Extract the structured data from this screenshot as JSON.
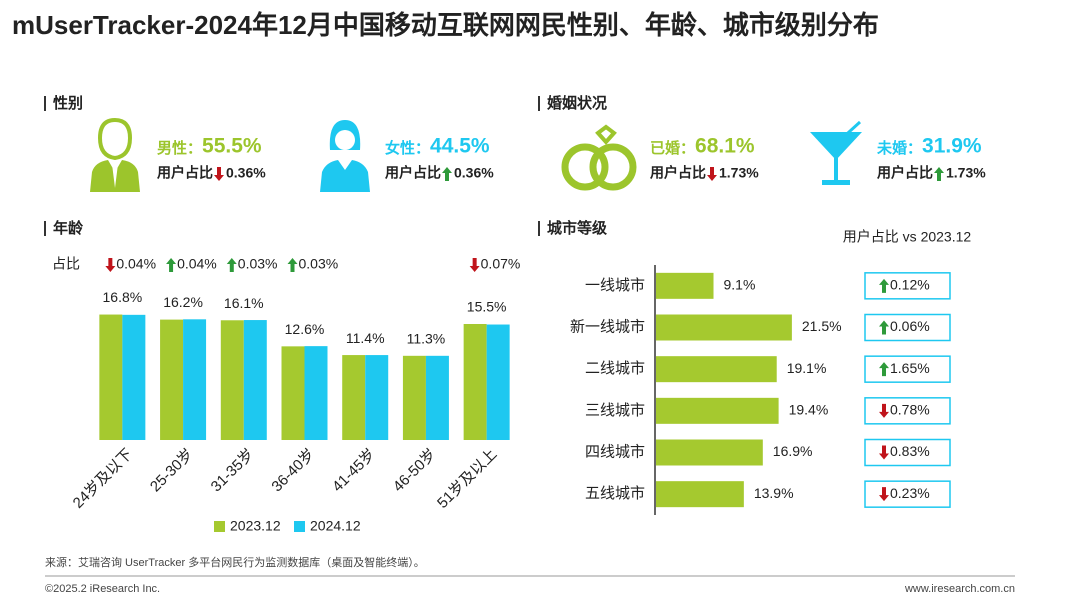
{
  "title": "mUserTracker-2024年12月中国移动互联网网民性别、年龄、城市级别分布",
  "gender": {
    "heading": "性别",
    "items": [
      {
        "label": "男性：",
        "value": "55.5%",
        "share_label": "用户占比",
        "change": "0.36%",
        "dir": "down",
        "color": "#9cc52c"
      },
      {
        "label": "女性：",
        "value": "44.5%",
        "share_label": "用户占比",
        "change": "0.36%",
        "dir": "up",
        "color": "#1ec8f0"
      }
    ]
  },
  "marriage": {
    "heading": "婚姻状况",
    "items": [
      {
        "label": "已婚：",
        "value": "68.1%",
        "share_label": "用户占比",
        "change": "1.73%",
        "dir": "down",
        "color": "#9cc52c"
      },
      {
        "label": "未婚：",
        "value": "31.9%",
        "share_label": "用户占比",
        "change": "1.73%",
        "dir": "up",
        "color": "#1ec8f0"
      }
    ]
  },
  "chart_data": [
    {
      "type": "bar",
      "heading": "年龄",
      "change_label": "占比",
      "categories": [
        "24岁及以下",
        "25-30岁",
        "31-35岁",
        "36-40岁",
        "41-45岁",
        "46-50岁",
        "51岁及以上"
      ],
      "series": [
        {
          "name": "2023.12",
          "color": "#a5c92f",
          "values": [
            16.84,
            16.16,
            16.07,
            12.57,
            11.4,
            11.3,
            15.57
          ]
        },
        {
          "name": "2024.12",
          "color": "#1ec8f0",
          "values": [
            16.8,
            16.2,
            16.1,
            12.6,
            11.4,
            11.3,
            15.5
          ],
          "value_labels": [
            "16.8%",
            "16.2%",
            "16.1%",
            "12.6%",
            "11.4%",
            "11.3%",
            "15.5%"
          ]
        }
      ],
      "changes": [
        {
          "dir": "down",
          "label": "0.04%"
        },
        {
          "dir": "up",
          "label": "0.04%"
        },
        {
          "dir": "up",
          "label": "0.03%"
        },
        {
          "dir": "up",
          "label": "0.03%"
        },
        null,
        null,
        {
          "dir": "down",
          "label": "0.07%"
        }
      ],
      "ylim": [
        0,
        20
      ]
    },
    {
      "type": "hbar",
      "heading": "城市等级",
      "subtitle": "用户占比 vs 2023.12",
      "categories": [
        "一线城市",
        "新一线城市",
        "二线城市",
        "三线城市",
        "四线城市",
        "五线城市"
      ],
      "values": [
        9.1,
        21.5,
        19.1,
        19.4,
        16.9,
        13.9
      ],
      "value_labels": [
        "9.1%",
        "21.5%",
        "19.1%",
        "19.4%",
        "16.9%",
        "13.9%"
      ],
      "color": "#a5c92f",
      "changes": [
        {
          "dir": "up",
          "label": "0.12%"
        },
        {
          "dir": "up",
          "label": "0.06%"
        },
        {
          "dir": "up",
          "label": "1.65%"
        },
        {
          "dir": "down",
          "label": "0.78%"
        },
        {
          "dir": "down",
          "label": "0.83%"
        },
        {
          "dir": "down",
          "label": "0.23%"
        }
      ],
      "xlim": [
        0,
        25
      ]
    }
  ],
  "footer": {
    "source": "来源：艾瑞咨询 UserTracker 多平台网民行为监测数据库（桌面及智能终端）。",
    "copyright": "©2025.2 iResearch Inc.",
    "url": "www.iresearch.com.cn"
  }
}
